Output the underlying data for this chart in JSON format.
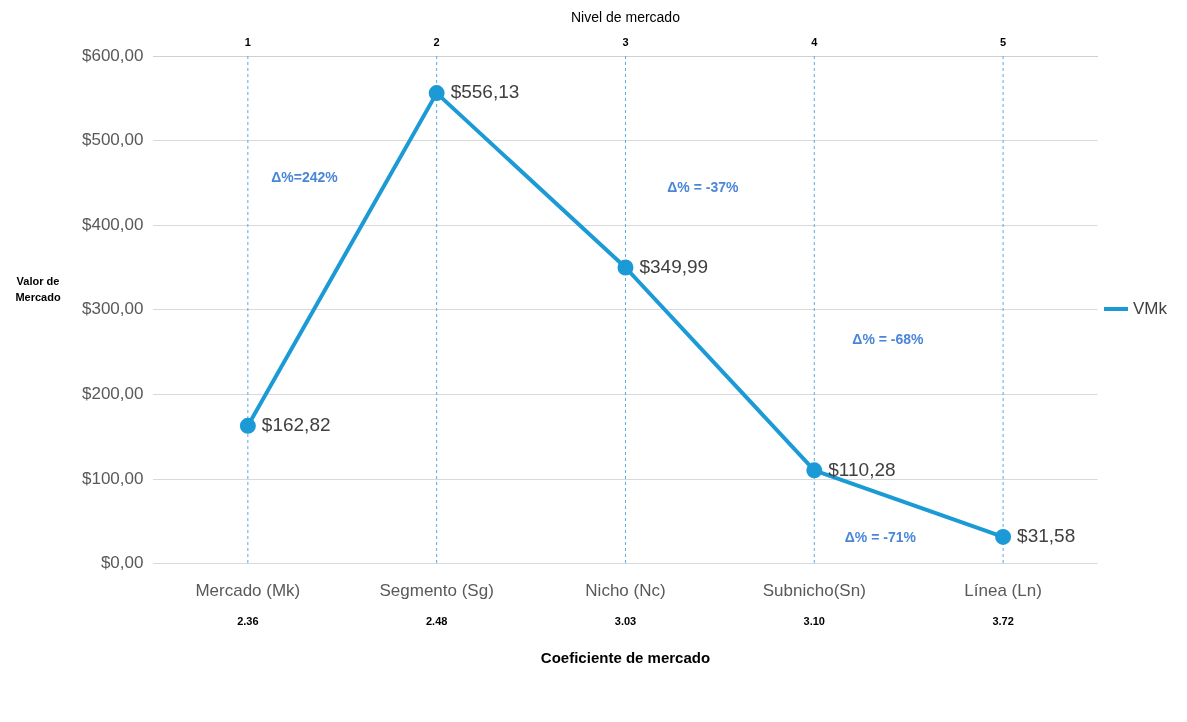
{
  "chart_data": {
    "type": "line",
    "x2label": "Nivel de mercado",
    "xlabel": "Coeficiente de mercado",
    "ylabel": "Valor de\nMercado",
    "categories": [
      "Mercado (Mk)",
      "Segmento (Sg)",
      "Nicho (Nc)",
      "Subnicho(Sn)",
      "Línea (Ln)"
    ],
    "x2lim": [
      0.5,
      5.5
    ],
    "x2ticks": [
      1,
      2,
      3,
      4,
      5
    ],
    "ylim": [
      0,
      600
    ],
    "yticks": [
      {
        "value": 0,
        "label": "$0,00"
      },
      {
        "value": 100,
        "label": "$100,00"
      },
      {
        "value": 200,
        "label": "$200,00"
      },
      {
        "value": 300,
        "label": "$300,00"
      },
      {
        "value": 400,
        "label": "$400,00"
      },
      {
        "value": 500,
        "label": "$500,00"
      },
      {
        "value": 600,
        "label": "$600,00"
      }
    ],
    "series": [
      {
        "name": "VMk",
        "color": "#1b9ad6",
        "values": [
          162.82,
          556.13,
          349.99,
          110.28,
          31.58
        ],
        "value_labels": [
          "$162,82",
          "$556,13",
          "$349,99",
          "$110,28",
          "$31,58"
        ]
      }
    ],
    "annotations": [
      "2.36",
      "2.48",
      "3.03",
      "3.10",
      "3.72",
      "Δ%=242%",
      "Δ% = -37%",
      "Δ% = -68%",
      "Δ% = -71%"
    ],
    "grid": true,
    "legend": "right",
    "marker": "circle",
    "line_style": "solid"
  }
}
